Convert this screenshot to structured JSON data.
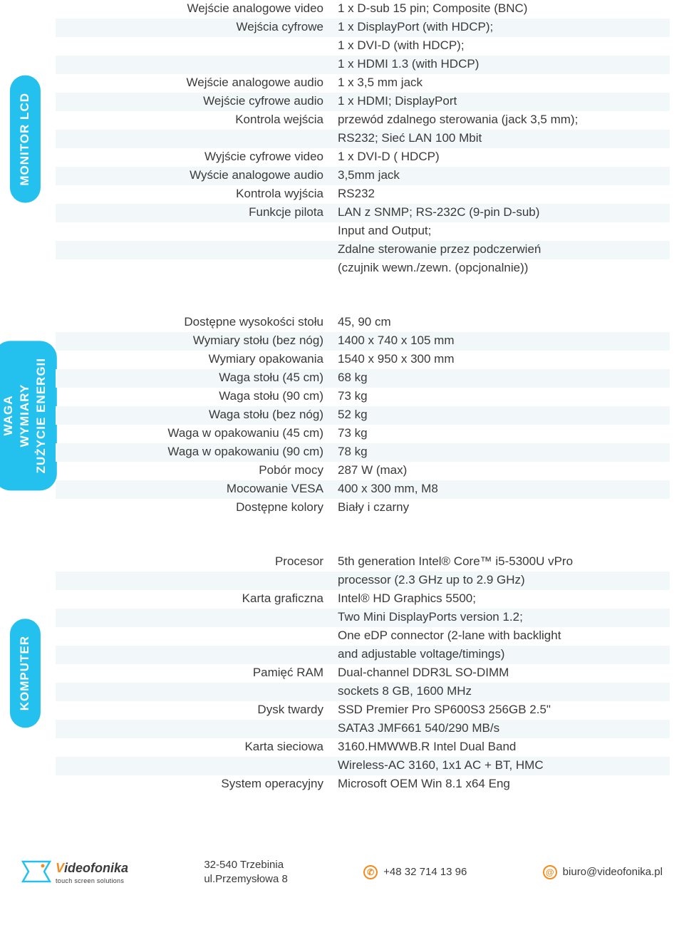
{
  "colors": {
    "tab_bg": "#24c0ee",
    "tab_text": "#ffffff",
    "row_shade": "#f2f7f9",
    "text": "#3a3a3a",
    "accent": "#f38b1e"
  },
  "sections": {
    "monitor": {
      "tab": "MONITOR LCD",
      "rows": [
        {
          "label": "Wejście analogowe video",
          "value": "1 x D-sub 15 pin; Composite (BNC)"
        },
        {
          "label": "Wejścia cyfrowe",
          "value": "1 x DisplayPort (with HDCP);\n1 x DVI-D (with HDCP);\n1 x HDMI 1.3 (with HDCP)"
        },
        {
          "label": "Wejście analogowe audio",
          "value": "1 x 3,5 mm jack"
        },
        {
          "label": "Wejście cyfrowe audio",
          "value": "1 x HDMI; DisplayPort"
        },
        {
          "label": "Kontrola wejścia",
          "value": "przewód zdalnego sterowania (jack 3,5 mm);\nRS232; Sieć LAN 100 Mbit"
        },
        {
          "label": "Wyjście cyfrowe video",
          "value": "1 x DVI-D ( HDCP)"
        },
        {
          "label": "Wyście analogowe audio",
          "value": "3,5mm jack"
        },
        {
          "label": "Kontrola wyjścia",
          "value": "RS232"
        },
        {
          "label": "Funkcje pilota",
          "value": "LAN z SNMP; RS-232C (9-pin D-sub)\nInput and Output;\nZdalne sterowanie przez podczerwień\n(czujnik wewn./zewn. (opcjonalnie))"
        }
      ]
    },
    "waga": {
      "tab": "WAGA\nWYMIARY\nZUŻYCIE ENERGII",
      "rows": [
        {
          "label": "Dostępne wysokości stołu",
          "value": "45, 90 cm"
        },
        {
          "label": "Wymiary stołu (bez nóg)",
          "value": "1400 x 740 x 105 mm"
        },
        {
          "label": "Wymiary opakowania",
          "value": "1540 x 950 x 300 mm"
        },
        {
          "label": "Waga stołu (45 cm)",
          "value": "68 kg"
        },
        {
          "label": "Waga stołu (90 cm)",
          "value": "73 kg"
        },
        {
          "label": "Waga stołu (bez nóg)",
          "value": "52 kg"
        },
        {
          "label": "Waga w opakowaniu (45 cm)",
          "value": "73 kg"
        },
        {
          "label": "Waga w opakowaniu (90 cm)",
          "value": "78 kg"
        },
        {
          "label": "Pobór mocy",
          "value": "287 W (max)"
        },
        {
          "label": "Mocowanie VESA",
          "value": "400 x 300 mm, M8"
        },
        {
          "label": "Dostępne kolory",
          "value": "Biały i czarny"
        }
      ]
    },
    "komputer": {
      "tab": "KOMPUTER",
      "rows": [
        {
          "label": "Procesor",
          "value": "5th generation Intel® Core™ i5-5300U vPro\nprocessor (2.3 GHz up to 2.9 GHz)"
        },
        {
          "label": "Karta graficzna",
          "value": "Intel® HD Graphics 5500;\nTwo Mini DisplayPorts version 1.2;\nOne eDP connector (2-lane with backlight\nand adjustable voltage/timings)"
        },
        {
          "label": "Pamięć RAM",
          "value": "Dual-channel DDR3L SO-DIMM\nsockets 8 GB, 1600 MHz"
        },
        {
          "label": "Dysk twardy",
          "value": "SSD Premier Pro SP600S3 256GB 2.5\"\nSATA3 JMF661 540/290 MB/s"
        },
        {
          "label": "Karta sieciowa",
          "value": "3160.HMWWB.R Intel Dual Band\nWireless-AC 3160, 1x1 AC + BT, HMC"
        },
        {
          "label": "System operacyjny",
          "value": "Microsoft OEM Win 8.1 x64 Eng"
        }
      ]
    }
  },
  "footer": {
    "brand": "ideofonika",
    "tagline": "touch screen solutions",
    "address": "32-540 Trzebinia\nul.Przemysłowa 8",
    "phone": "+48 32 714 13 96",
    "email": "biuro@videofonika.pl"
  }
}
